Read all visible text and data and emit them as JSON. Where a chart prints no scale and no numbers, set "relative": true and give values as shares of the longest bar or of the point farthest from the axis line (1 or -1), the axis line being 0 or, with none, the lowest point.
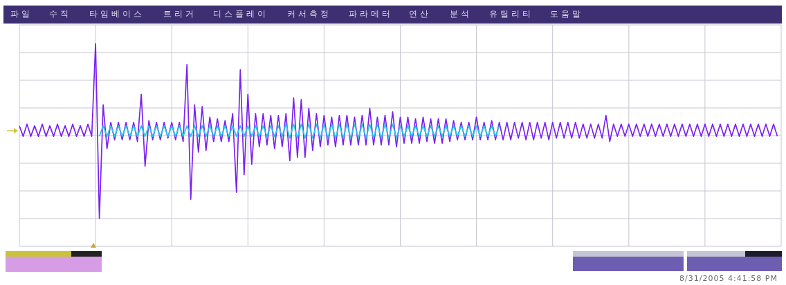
{
  "chart_data": {
    "type": "line",
    "relative": true,
    "grid": true,
    "annotations": [
      "파일",
      "수직",
      "타임베이스",
      "트리거",
      "디스플레이",
      "커서측정",
      "파라메터",
      "연산",
      "분석",
      "유틸리티",
      "도움말",
      "8/31/2005 4:41:58 PM"
    ],
    "categories": [
      null,
      null,
      null,
      null,
      null,
      null,
      null,
      null,
      null,
      null,
      null,
      null,
      null,
      null,
      null,
      null,
      null,
      null,
      null,
      null,
      null,
      null,
      null,
      null,
      null,
      null,
      null,
      null,
      null,
      null,
      null,
      null,
      null,
      null,
      null,
      null,
      null,
      null,
      null,
      null,
      null,
      null,
      null,
      null,
      null,
      null,
      null,
      null,
      null,
      null,
      null,
      null,
      null,
      null,
      null,
      null,
      null,
      null,
      null,
      null,
      null,
      null,
      null,
      null,
      null,
      null,
      null,
      null,
      null,
      null,
      null,
      null,
      null,
      null,
      null,
      null,
      null,
      null,
      null,
      null,
      null,
      null,
      null,
      null,
      null,
      null,
      null,
      null,
      null,
      null,
      null,
      null,
      null,
      null,
      null,
      null,
      null,
      null,
      null,
      null,
      null,
      null,
      null,
      null,
      null,
      null,
      null,
      null,
      null,
      null,
      null,
      null,
      null,
      null,
      null,
      null,
      null,
      null,
      null,
      null,
      null,
      null,
      null,
      null,
      null,
      null,
      null,
      null,
      null,
      null,
      null,
      null,
      null,
      null,
      null,
      null,
      null,
      null,
      null,
      null,
      null,
      null,
      null,
      null,
      null,
      null,
      null,
      null,
      null,
      null,
      null,
      null,
      null,
      null,
      null,
      null,
      null,
      null,
      null,
      null,
      null,
      null,
      null,
      null,
      null,
      null,
      null,
      null,
      null,
      null,
      null,
      null,
      null,
      null,
      null,
      null,
      null,
      null,
      null,
      null,
      null,
      null,
      null,
      null,
      null,
      null,
      null,
      null,
      null,
      null,
      null,
      null,
      null,
      null,
      null,
      null,
      null,
      null,
      null,
      null
    ],
    "series": [
      {
        "color": "#7b22f2",
        "values": [
          0.53,
          0.47,
          0.54,
          0.47,
          0.53,
          0.47,
          0.54,
          0.47,
          0.53,
          0.47,
          0.54,
          0.47,
          0.53,
          0.47,
          0.54,
          0.47,
          0.53,
          0.47,
          0.54,
          0.47,
          1,
          0,
          0.65,
          0.4,
          0.55,
          0.45,
          0.55,
          0.45,
          0.55,
          0.45,
          0.55,
          0.44,
          0.71,
          0.3,
          0.56,
          0.45,
          0.55,
          0.45,
          0.55,
          0.46,
          0.55,
          0.45,
          0.55,
          0.44,
          0.88,
          0.11,
          0.65,
          0.38,
          0.64,
          0.39,
          0.58,
          0.44,
          0.57,
          0.44,
          0.56,
          0.44,
          0.6,
          0.15,
          0.85,
          0.25,
          0.71,
          0.31,
          0.6,
          0.41,
          0.6,
          0.42,
          0.59,
          0.4,
          0.59,
          0.41,
          0.6,
          0.33,
          0.69,
          0.35,
          0.68,
          0.35,
          0.63,
          0.39,
          0.6,
          0.41,
          0.59,
          0.42,
          0.58,
          0.41,
          0.59,
          0.42,
          0.59,
          0.42,
          0.58,
          0.42,
          0.59,
          0.42,
          0.63,
          0.42,
          0.58,
          0.42,
          0.59,
          0.42,
          0.61,
          0.41,
          0.58,
          0.43,
          0.58,
          0.43,
          0.57,
          0.43,
          0.58,
          0.44,
          0.57,
          0.43,
          0.57,
          0.43,
          0.57,
          0.44,
          0.56,
          0.45,
          0.55,
          0.45,
          0.55,
          0.45,
          0.58,
          0.45,
          0.55,
          0.45,
          0.56,
          0.45,
          0.55,
          0.45,
          0.55,
          0.45,
          0.55,
          0.46,
          0.55,
          0.45,
          0.55,
          0.45,
          0.55,
          0.46,
          0.55,
          0.45,
          0.55,
          0.46,
          0.55,
          0.46,
          0.55,
          0.46,
          0.55,
          0.46,
          0.54,
          0.46,
          0.54,
          0.46,
          0.54,
          0.46,
          0.59,
          0.44,
          0.54,
          0.47,
          0.54,
          0.47,
          0.54,
          0.47,
          0.54,
          0.47,
          0.54,
          0.47,
          0.54,
          0.47,
          0.54,
          0.47,
          0.54,
          0.47,
          0.54,
          0.47,
          0.54,
          0.47,
          0.54,
          0.47,
          0.54,
          0.47,
          0.54,
          0.47,
          0.54,
          0.47,
          0.54,
          0.47,
          0.54,
          0.47,
          0.54,
          0.47,
          0.54,
          0.47,
          0.54,
          0.47,
          0.54,
          0.47,
          0.54,
          0.47,
          0.54,
          0.47
        ]
      },
      {
        "color": "#22c8e6",
        "values": [
          null,
          null,
          null,
          null,
          null,
          null,
          null,
          null,
          null,
          null,
          null,
          null,
          null,
          null,
          null,
          null,
          null,
          null,
          null,
          null,
          null,
          0.47,
          0.53,
          0.47,
          0.53,
          0.47,
          0.53,
          0.47,
          0.53,
          0.47,
          0.53,
          0.47,
          0.53,
          0.47,
          0.53,
          0.47,
          0.53,
          0.47,
          0.53,
          0.47,
          0.53,
          0.47,
          0.53,
          0.47,
          0.53,
          0.47,
          0.53,
          0.47,
          0.53,
          0.47,
          0.53,
          0.47,
          0.53,
          0.47,
          0.53,
          0.47,
          0.53,
          0.47,
          0.53,
          0.47,
          0.53,
          0.47,
          0.53,
          0.47,
          0.53,
          0.47,
          0.53,
          0.47,
          0.53,
          0.47,
          0.54,
          0.46,
          0.54,
          0.46,
          0.54,
          0.46,
          0.54,
          0.46,
          0.54,
          0.46,
          0.54,
          0.46,
          0.54,
          0.46,
          0.54,
          0.46,
          0.54,
          0.46,
          0.54,
          0.46,
          0.54,
          0.46,
          0.54,
          0.46,
          0.54,
          0.46,
          0.54,
          0.46,
          0.54,
          0.46,
          0.53,
          0.47,
          0.53,
          0.47,
          0.53,
          0.47,
          0.53,
          0.47,
          0.53,
          0.47,
          0.53,
          0.47,
          0.53,
          0.47,
          0.53,
          0.47,
          0.53,
          0.47,
          0.53,
          0.47,
          0.53,
          0.47,
          0.53,
          0.47,
          0.53,
          0.47,
          0.53,
          null,
          null,
          null,
          null,
          null,
          null,
          null,
          null,
          null,
          null,
          null,
          null,
          null,
          null,
          null,
          null,
          null,
          null,
          null,
          null,
          null,
          null,
          null,
          null,
          null,
          null,
          null,
          null,
          null,
          null,
          null,
          null,
          null,
          null,
          null,
          null,
          null,
          null,
          null,
          null,
          null,
          null,
          null,
          null,
          null,
          null,
          null,
          null,
          null,
          null,
          null,
          null,
          null,
          null,
          null,
          null,
          null,
          null,
          null,
          null,
          null,
          null,
          null,
          null,
          null,
          null,
          null,
          null,
          null,
          null,
          null,
          null,
          null
        ]
      }
    ]
  }
}
